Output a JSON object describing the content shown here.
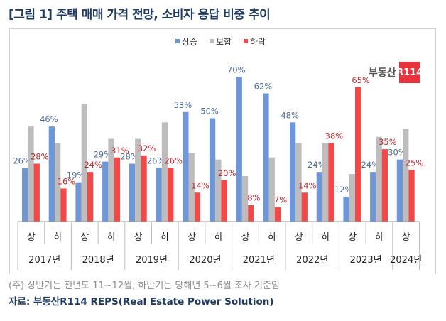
{
  "title": "[그림 1] 주택 매매 가격 전망, 소비자 응답 비중 추이",
  "logo": {
    "text": "부동산",
    "badge": "R114"
  },
  "footnote": "(주) 상반기는 전년도 11~12월, 하반기는 당해년 5~6월 조사 기준임",
  "source": "자료: 부동산R114 REPS(Real Estate Power Solution)",
  "chart_data": {
    "type": "bar",
    "legend_position": "top",
    "categories": [
      "상",
      "하",
      "상",
      "하",
      "상",
      "하",
      "상",
      "하",
      "상",
      "하",
      "상",
      "하",
      "상",
      "하",
      "상"
    ],
    "years": [
      {
        "label": "2017년",
        "span": 2
      },
      {
        "label": "2018년",
        "span": 2
      },
      {
        "label": "2019년",
        "span": 2
      },
      {
        "label": "2020년",
        "span": 2
      },
      {
        "label": "2021년",
        "span": 2
      },
      {
        "label": "2022년",
        "span": 2
      },
      {
        "label": "2023년",
        "span": 2
      },
      {
        "label": "2024년",
        "span": 1
      }
    ],
    "ylim": [
      0,
      75
    ],
    "series": [
      {
        "name": "상승",
        "color": "#6f96d6",
        "labeled": true,
        "values": [
          26,
          46,
          19,
          29,
          28,
          26,
          53,
          50,
          70,
          62,
          48,
          24,
          12,
          24,
          30
        ]
      },
      {
        "name": "보합",
        "color": "#bdbdbd",
        "labeled": false,
        "values": [
          46,
          38,
          57,
          40,
          40,
          48,
          33,
          30,
          22,
          31,
          38,
          38,
          23,
          41,
          45
        ]
      },
      {
        "name": "하락",
        "color": "#f24848",
        "labeled": true,
        "values": [
          28,
          16,
          24,
          31,
          32,
          26,
          14,
          20,
          8,
          7,
          14,
          38,
          65,
          35,
          25
        ]
      }
    ],
    "label_colors": [
      "#4e6a99",
      null,
      "#c0282d"
    ]
  }
}
